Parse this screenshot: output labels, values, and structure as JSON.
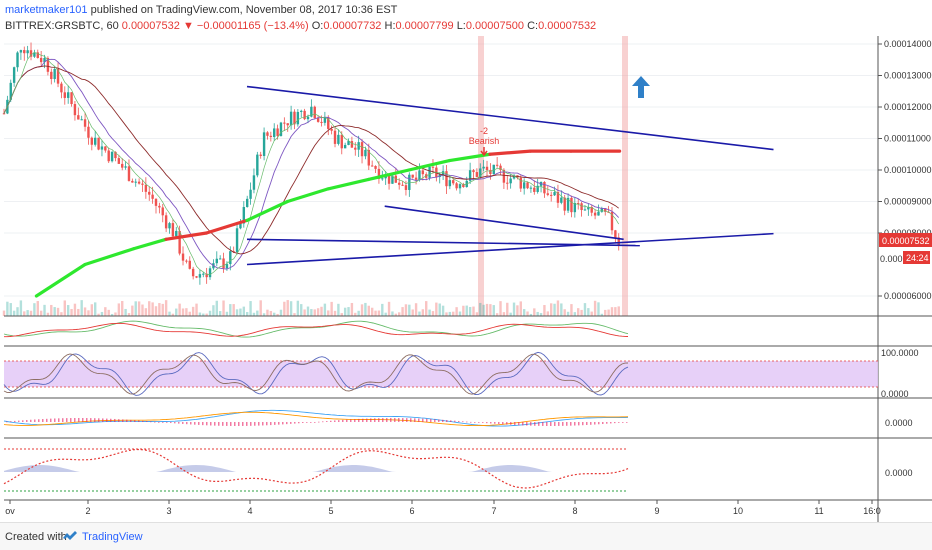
{
  "header": {
    "author": "marketmaker101",
    "published": "published on TradingView.com, November 08, 2017 10:36 EST",
    "symbol": "BITTREX:GRSBTC, 60",
    "last": "0.00007532",
    "change": "▼ −0.00001165 (−13.4%)",
    "ohlc_o_label": "O:",
    "ohlc_o": "0.00007732",
    "ohlc_h_label": "H:",
    "ohlc_h": "0.00007799",
    "ohlc_l_label": "L:",
    "ohlc_l": "0.00007500",
    "ohlc_c_label": "C:",
    "ohlc_c": "0.00007532"
  },
  "price_axis": {
    "ticks": [
      "0.00014000",
      "0.00013000",
      "0.00012000",
      "0.00011000",
      "0.00010000",
      "0.00009000",
      "0.00008000",
      "0.00006000"
    ],
    "current_price": "0.00007532",
    "countdown": "24:24",
    "partial_label": "0.000"
  },
  "indicators": {
    "stoch_top": "100.0000",
    "stoch_bottom": "0.0000",
    "macd_zero": "0.0000",
    "last_zero": "0.0000"
  },
  "time_axis": {
    "labels": [
      "ov",
      "2",
      "3",
      "4",
      "5",
      "6",
      "7",
      "8",
      "9",
      "10",
      "11",
      "16:0"
    ]
  },
  "annotations": {
    "signal_number": "-2",
    "signal_text": "Bearish"
  },
  "footer": {
    "created": "Created with",
    "brand": "TradingView"
  },
  "colors": {
    "up": "#26a69a",
    "down": "#ef5350",
    "trend": "#1a1aa8",
    "ema_up": "#2ee82e",
    "ema_down": "#e53935",
    "stoch_band": "#e3c8f7",
    "arrow": "#2f80c8"
  },
  "chart_data": {
    "type": "candlestick",
    "symbol": "BITTREX:GRSBTC",
    "interval": "60",
    "x_range": [
      1,
      16
    ],
    "ylim": [
      5e-05,
      0.000142
    ],
    "trendlines": [
      {
        "from": [
          4.0,
          0.0001265
        ],
        "to": [
          10.5,
          0.0001065
        ]
      },
      {
        "from": [
          5.7,
          8.85e-05
        ],
        "to": [
          8.65,
          7.8e-05
        ]
      },
      {
        "from": [
          4.0,
          7.8e-05
        ],
        "to": [
          8.85,
          7.6e-05
        ]
      },
      {
        "from": [
          4.0,
          7e-05
        ],
        "to": [
          10.5,
          7.98e-05
        ]
      }
    ],
    "signal": {
      "x": 6.9,
      "label": "Bearish",
      "strength": -2
    },
    "target_arrow": {
      "x": 8.75,
      "y": 0.00013
    }
  }
}
